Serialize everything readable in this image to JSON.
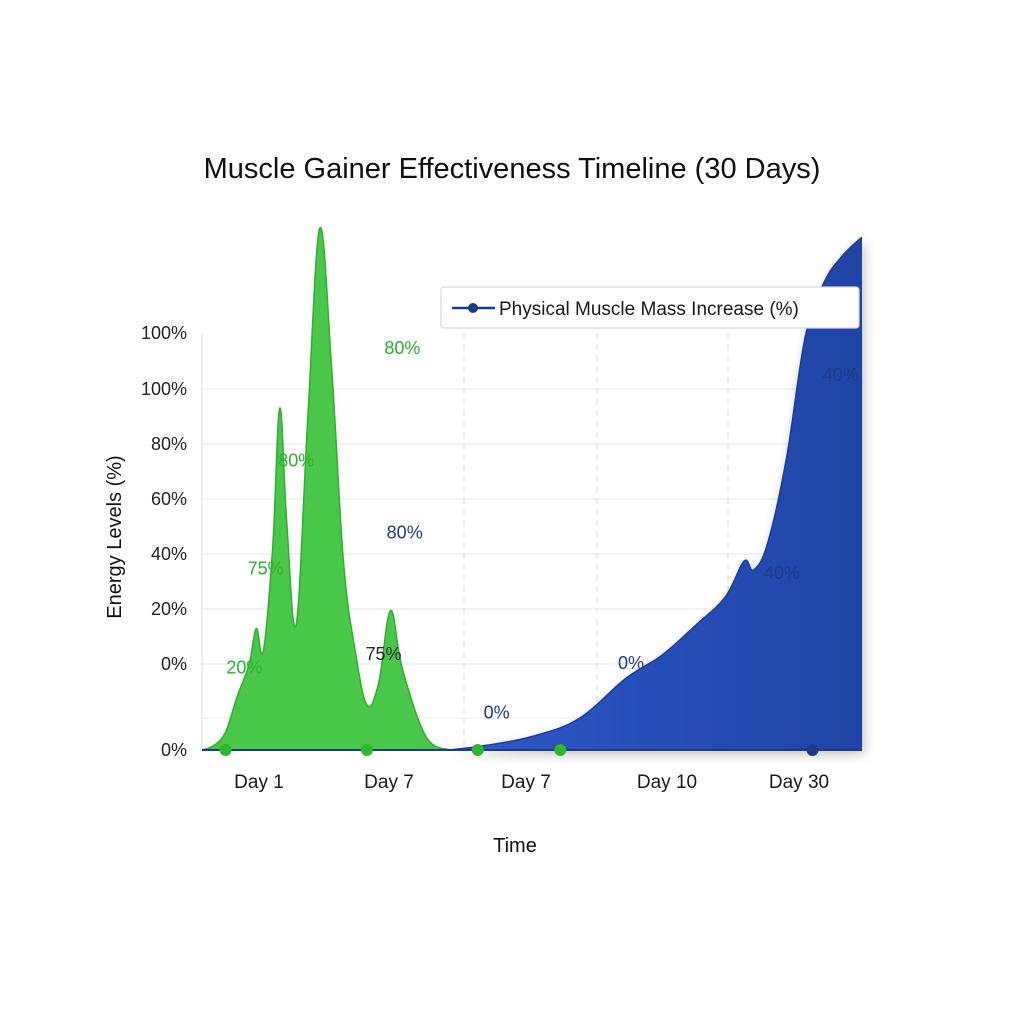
{
  "chart_data": {
    "type": "area",
    "title": "Muscle Gainer Effectiveness Timeline (30 Days)",
    "xlabel": "Time",
    "ylabel": "Energy Levels (%)",
    "y_tick_labels": [
      "0%",
      "0%",
      "20%",
      "40%",
      "60%",
      "80%",
      "100%",
      "100%"
    ],
    "x_tick_labels": [
      "Day 1",
      "Day 7",
      "Day 7",
      "Day 10",
      "Day 30"
    ],
    "legend_position": "top-right",
    "grid": true,
    "series": [
      {
        "name": "",
        "color": "#3cc33c",
        "points": [
          [
            0,
            0
          ],
          [
            0.5,
            1
          ],
          [
            1,
            4
          ],
          [
            1.5,
            12
          ],
          [
            2,
            19
          ],
          [
            2.3,
            27
          ],
          [
            2.6,
            22
          ],
          [
            3,
            45
          ],
          [
            3.3,
            76
          ],
          [
            3.6,
            50
          ],
          [
            4,
            28
          ],
          [
            4.5,
            75
          ],
          [
            5,
            116
          ],
          [
            5.5,
            85
          ],
          [
            6,
            42
          ],
          [
            6.5,
            22
          ],
          [
            7,
            10
          ],
          [
            7.5,
            15
          ],
          [
            8,
            31
          ],
          [
            8.5,
            18
          ],
          [
            9.5,
            3
          ],
          [
            10.5,
            0
          ]
        ],
        "markers_x": [
          1,
          7,
          11.7,
          15.2
        ]
      },
      {
        "name": "Physical Muscle Mass Increase (%)",
        "color": "#1e44a8",
        "points": [
          [
            10.5,
            0
          ],
          [
            12,
            1
          ],
          [
            14,
            3
          ],
          [
            16,
            7
          ],
          [
            18,
            16
          ],
          [
            19.5,
            21
          ],
          [
            21,
            28
          ],
          [
            22.2,
            34
          ],
          [
            23,
            42
          ],
          [
            23.4,
            40
          ],
          [
            24,
            46
          ],
          [
            24.8,
            65
          ],
          [
            25.6,
            92
          ],
          [
            26.4,
            104
          ],
          [
            27.2,
            110
          ],
          [
            28,
            114
          ]
        ],
        "markers_x": [
          25.9
        ]
      }
    ],
    "annotations": [
      {
        "text": "80%",
        "x": 8.5,
        "y": 88,
        "series": 0
      },
      {
        "text": "80%",
        "x": 4.0,
        "y": 63,
        "series": 0
      },
      {
        "text": "75%",
        "x": 2.7,
        "y": 39,
        "series": 0
      },
      {
        "text": "20%",
        "x": 1.8,
        "y": 17,
        "series": 0
      },
      {
        "text": "75%",
        "x": 7.7,
        "y": 20,
        "series": "dark"
      },
      {
        "text": "80%",
        "x": 8.6,
        "y": 47,
        "series": 1
      },
      {
        "text": "0%",
        "x": 12.5,
        "y": 7,
        "series": 1
      },
      {
        "text": "0%",
        "x": 18.2,
        "y": 18,
        "series": 1
      },
      {
        "text": "40%",
        "x": 24.6,
        "y": 38,
        "series": 1
      },
      {
        "text": "40%",
        "x": 27.1,
        "y": 82,
        "series": 1
      }
    ]
  }
}
